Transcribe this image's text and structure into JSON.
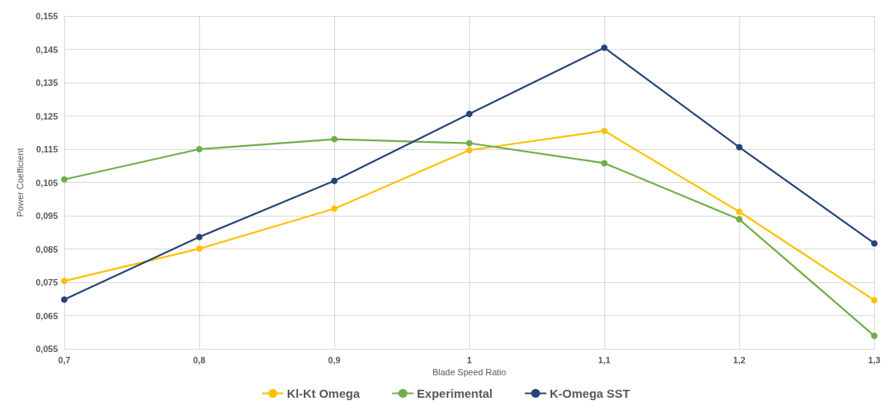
{
  "chart_data": {
    "type": "line",
    "xlabel": "Blade Speed Ratio",
    "ylabel": "Power Coefficient",
    "x": [
      0.7,
      0.8,
      0.9,
      1.0,
      1.1,
      1.2,
      1.3
    ],
    "series": [
      {
        "name": "Kl-Kt Omega",
        "color": "#ffc000",
        "values": [
          0.0754,
          0.0851,
          0.0971,
          0.1147,
          0.1205,
          0.0962,
          0.0696
        ]
      },
      {
        "name": "Experimental",
        "color": "#70ad47",
        "values": [
          0.1059,
          0.115,
          0.118,
          0.1168,
          0.1108,
          0.0939,
          0.0589
        ]
      },
      {
        "name": "K-Omega SST",
        "color": "#264478",
        "values": [
          0.0698,
          0.0886,
          0.1055,
          0.1256,
          0.1455,
          0.1156,
          0.0867
        ]
      }
    ],
    "xlim": [
      0.7,
      1.3
    ],
    "xticks": [
      {
        "value": 0.7,
        "label": "0,7"
      },
      {
        "value": 0.8,
        "label": "0,8"
      },
      {
        "value": 0.9,
        "label": "0,9"
      },
      1,
      {
        "value": 1.1,
        "label": "1,1"
      },
      {
        "value": 1.2,
        "label": "1,2"
      },
      {
        "value": 1.3,
        "label": "1,3"
      }
    ],
    "ylim": [
      0.055,
      0.155
    ],
    "yticks": [
      {
        "value": 0.055,
        "label": "0,055"
      },
      {
        "value": 0.065,
        "label": "0,065"
      },
      {
        "value": 0.075,
        "label": "0,075"
      },
      {
        "value": 0.085,
        "label": "0,085"
      },
      {
        "value": 0.095,
        "label": "0,095"
      },
      {
        "value": 0.105,
        "label": "0,105"
      },
      {
        "value": 0.115,
        "label": "0,115"
      },
      {
        "value": 0.125,
        "label": "0,125"
      },
      {
        "value": 0.135,
        "label": "0,135"
      },
      {
        "value": 0.145,
        "label": "0,145"
      },
      {
        "value": 0.155,
        "label": "0,155"
      }
    ],
    "grid": true,
    "legend": "bottom",
    "marker": "circle",
    "line_style": "solid"
  }
}
